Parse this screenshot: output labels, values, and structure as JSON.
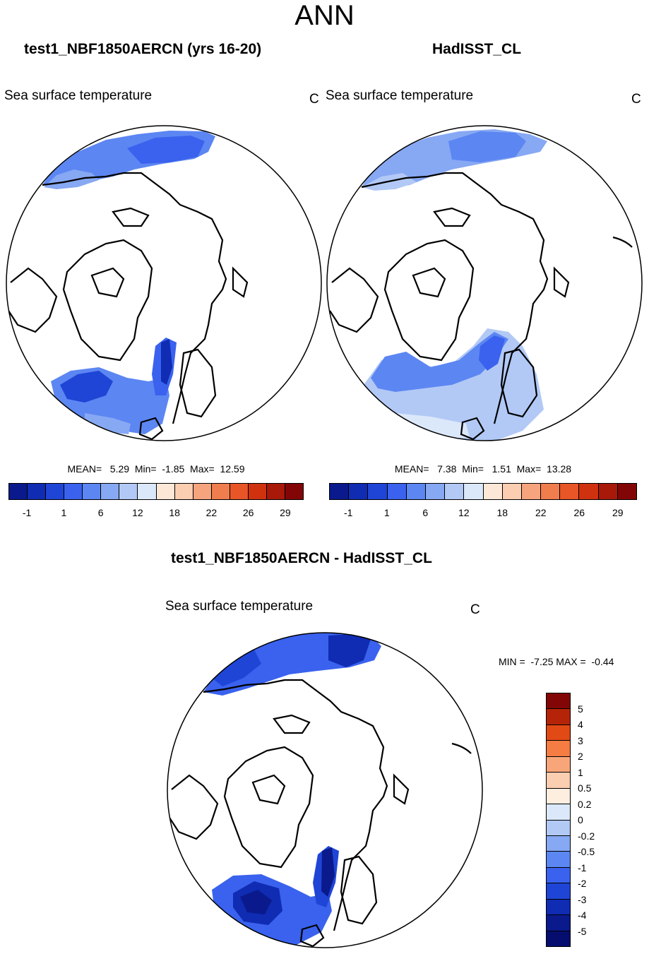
{
  "title": "ANN",
  "panels": {
    "left": {
      "title": "test1_NBF1850AERCN (yrs 16-20)",
      "variable": "Sea surface temperature",
      "unit": "C",
      "stats": "MEAN=   5.29  Min=  -1.85  Max=  12.59"
    },
    "right": {
      "title": "HadISST_CL",
      "variable": "Sea surface temperature",
      "unit": "C",
      "stats": "MEAN=   7.38  Min=   1.51  Max=  13.28"
    },
    "diff": {
      "title": "test1_NBF1850AERCN - HadISST_CL",
      "variable": "Sea surface temperature",
      "unit": "C",
      "stats": "MIN =  -7.25 MAX =  -0.44"
    }
  },
  "colorbar_abs": {
    "colors": [
      "#0a1a8c",
      "#0f2cb3",
      "#1f45d6",
      "#3a62ee",
      "#5c86f2",
      "#87a8f3",
      "#b2c9f6",
      "#dbe8fa",
      "#fde8d8",
      "#fbcdb1",
      "#f6a47d",
      "#f07d4e",
      "#e85526",
      "#d0320f",
      "#a8190a",
      "#830606"
    ],
    "tick_labels": [
      "-1",
      "1",
      "6",
      "12",
      "18",
      "22",
      "26",
      "29"
    ]
  },
  "colorbar_diff": {
    "colors": [
      "#830606",
      "#b52408",
      "#e24a15",
      "#f57c43",
      "#f8a679",
      "#fbcdb1",
      "#fdeee0",
      "#dbe8fa",
      "#b2c9f6",
      "#87a8f3",
      "#5c86f2",
      "#3a62ee",
      "#1f45d6",
      "#0f2cb3",
      "#0a1a8c",
      "#050e6e"
    ],
    "tick_labels": [
      "5",
      "4",
      "3",
      "2",
      "1",
      "0.5",
      "0.2",
      "0",
      "-0.2",
      "-0.5",
      "-1",
      "-2",
      "-3",
      "-4",
      "-5"
    ]
  }
}
